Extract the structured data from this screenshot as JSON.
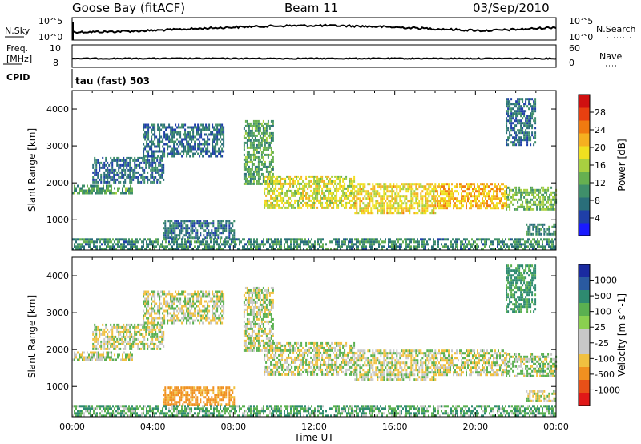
{
  "header": {
    "station": "Goose Bay (fitACF)",
    "beam": "Beam 11",
    "date": "03/Sep/2010"
  },
  "top_panels": {
    "noise": {
      "left_label": "N.Sky",
      "right_label": "N.Search",
      "tick_top_left": "10^5",
      "tick_bottom_left": "10^0",
      "tick_top_right": "10^5",
      "tick_bottom_right": "10^0"
    },
    "freq": {
      "left_label_line1": "Freq.",
      "left_label_line2": "[MHz]",
      "tick_top_left": "10",
      "tick_bottom_left": "8",
      "right_label": "Nave",
      "tick_top_right": "60",
      "tick_bottom_right": "0"
    },
    "cpid": {
      "label": "CPID",
      "text": "tau (fast) 503"
    }
  },
  "colors": {
    "power_scale": [
      "#1a1aff",
      "#1f3fa8",
      "#2a6e7a",
      "#3f8f6a",
      "#66b050",
      "#a8d040",
      "#f0e020",
      "#f5b020",
      "#f07a10",
      "#e84010",
      "#d01010"
    ],
    "velocity_scale": [
      "#1a2aa0",
      "#2a5aa0",
      "#2e8a70",
      "#5ab050",
      "#8ad050",
      "#c8c8c8",
      "#c8c8c8",
      "#f0c040",
      "#f09020",
      "#e85018",
      "#e01818"
    ]
  },
  "chart_data": [
    {
      "type": "heatmap",
      "name": "power",
      "xlabel": "",
      "ylabel": "Slant Range [km]",
      "xlim": [
        0,
        24
      ],
      "ylim": [
        180,
        4500
      ],
      "yticks": [
        "1000",
        "2000",
        "3000",
        "4000"
      ],
      "colorbar_label": "Power [dB]",
      "colorbar_ticks": [
        "4",
        "8",
        "12",
        "16",
        "20",
        "24",
        "28"
      ],
      "colorbar_range": [
        0,
        32
      ],
      "echo_regions": [
        {
          "t0": 0.0,
          "t1": 3.0,
          "r0": 1700,
          "r1": 1950,
          "level": 10
        },
        {
          "t0": 1.0,
          "t1": 4.5,
          "r0": 2000,
          "r1": 2700,
          "level": 6
        },
        {
          "t0": 3.5,
          "t1": 7.5,
          "r0": 2700,
          "r1": 3600,
          "level": 6
        },
        {
          "t0": 4.5,
          "t1": 8.0,
          "r0": 500,
          "r1": 1000,
          "level": 6
        },
        {
          "t0": 0.0,
          "t1": 24.0,
          "r0": 180,
          "r1": 500,
          "level": 8
        },
        {
          "t0": 8.5,
          "t1": 10.0,
          "r0": 2000,
          "r1": 3700,
          "level": 10
        },
        {
          "t0": 9.5,
          "t1": 14.0,
          "r0": 1300,
          "r1": 2200,
          "level": 16
        },
        {
          "t0": 14.0,
          "t1": 18.0,
          "r0": 1200,
          "r1": 2000,
          "level": 18
        },
        {
          "t0": 18.0,
          "t1": 21.5,
          "r0": 1300,
          "r1": 2000,
          "level": 20
        },
        {
          "t0": 21.5,
          "t1": 24.0,
          "r0": 1300,
          "r1": 1900,
          "level": 12
        },
        {
          "t0": 21.5,
          "t1": 23.0,
          "r0": 3000,
          "r1": 4300,
          "level": 6
        },
        {
          "t0": 22.5,
          "t1": 24.0,
          "r0": 600,
          "r1": 900,
          "level": 8
        }
      ]
    },
    {
      "type": "heatmap",
      "name": "velocity",
      "xlabel": "Time UT",
      "ylabel": "Slant Range [km]",
      "xlim": [
        0,
        24
      ],
      "ylim": [
        180,
        4500
      ],
      "xticks": [
        "00:00",
        "04:00",
        "08:00",
        "12:00",
        "16:00",
        "20:00",
        "00:00"
      ],
      "yticks": [
        "1000",
        "2000",
        "3000",
        "4000"
      ],
      "colorbar_label": "Velocity [m s^-1]",
      "colorbar_ticks": [
        "1000",
        "500",
        "100",
        "25",
        "-25",
        "-100",
        "-500",
        "-1000"
      ],
      "echo_regions": [
        {
          "t0": 0.0,
          "t1": 3.0,
          "r0": 1700,
          "r1": 1950,
          "vel": 0
        },
        {
          "t0": 1.0,
          "t1": 4.5,
          "r0": 2000,
          "r1": 2700,
          "vel": 0
        },
        {
          "t0": 3.5,
          "t1": 7.5,
          "r0": 2700,
          "r1": 3600,
          "vel": 0
        },
        {
          "t0": 4.5,
          "t1": 8.0,
          "r0": 500,
          "r1": 1000,
          "vel": -150
        },
        {
          "t0": 0.0,
          "t1": 24.0,
          "r0": 180,
          "r1": 500,
          "vel": 80
        },
        {
          "t0": 8.5,
          "t1": 10.0,
          "r0": 2000,
          "r1": 3700,
          "vel": 0
        },
        {
          "t0": 9.5,
          "t1": 14.0,
          "r0": 1300,
          "r1": 2200,
          "vel": 0
        },
        {
          "t0": 14.0,
          "t1": 18.0,
          "r0": 1200,
          "r1": 2000,
          "vel": 0
        },
        {
          "t0": 18.0,
          "t1": 21.5,
          "r0": 1300,
          "r1": 2000,
          "vel": 0
        },
        {
          "t0": 21.5,
          "t1": 24.0,
          "r0": 1300,
          "r1": 1900,
          "vel": 30
        },
        {
          "t0": 21.5,
          "t1": 23.0,
          "r0": 3000,
          "r1": 4300,
          "vel": 120
        },
        {
          "t0": 22.5,
          "t1": 24.0,
          "r0": 600,
          "r1": 900,
          "vel": 0
        }
      ]
    }
  ]
}
